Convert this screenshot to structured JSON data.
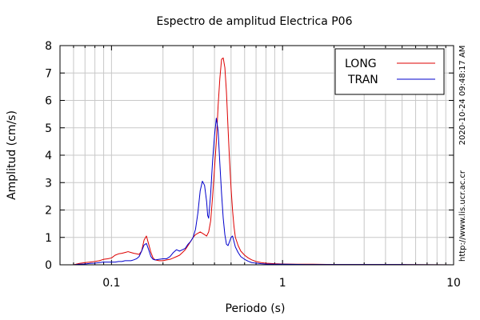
{
  "chart_data": {
    "type": "line",
    "title": "Espectro de amplitud Electrica P06",
    "xlabel": "Periodo (s)",
    "ylabel": "Amplitud (cm/s)",
    "x_scale": "log",
    "xlim": [
      0.05,
      10
    ],
    "ylim": [
      0,
      8
    ],
    "x_tick_labels": [
      {
        "value": 0.1,
        "label": "0.1"
      },
      {
        "value": 1,
        "label": "1"
      },
      {
        "value": 10,
        "label": "10"
      }
    ],
    "y_tick_labels": [
      "0",
      "1",
      "2",
      "3",
      "4",
      "5",
      "6",
      "7",
      "8"
    ],
    "grid": true,
    "legend_position": "top-right",
    "series": [
      {
        "name": "LONG",
        "color": "#dd0000",
        "points": [
          [
            0.06,
            0.0
          ],
          [
            0.065,
            0.05
          ],
          [
            0.07,
            0.08
          ],
          [
            0.075,
            0.1
          ],
          [
            0.08,
            0.12
          ],
          [
            0.085,
            0.15
          ],
          [
            0.09,
            0.2
          ],
          [
            0.095,
            0.22
          ],
          [
            0.1,
            0.25
          ],
          [
            0.105,
            0.35
          ],
          [
            0.11,
            0.4
          ],
          [
            0.115,
            0.42
          ],
          [
            0.12,
            0.45
          ],
          [
            0.125,
            0.48
          ],
          [
            0.13,
            0.45
          ],
          [
            0.135,
            0.42
          ],
          [
            0.14,
            0.4
          ],
          [
            0.145,
            0.38
          ],
          [
            0.15,
            0.5
          ],
          [
            0.155,
            0.9
          ],
          [
            0.16,
            1.05
          ],
          [
            0.165,
            0.75
          ],
          [
            0.17,
            0.45
          ],
          [
            0.175,
            0.25
          ],
          [
            0.18,
            0.18
          ],
          [
            0.19,
            0.15
          ],
          [
            0.2,
            0.15
          ],
          [
            0.21,
            0.18
          ],
          [
            0.22,
            0.2
          ],
          [
            0.23,
            0.25
          ],
          [
            0.24,
            0.3
          ],
          [
            0.25,
            0.35
          ],
          [
            0.26,
            0.45
          ],
          [
            0.27,
            0.55
          ],
          [
            0.28,
            0.7
          ],
          [
            0.29,
            0.85
          ],
          [
            0.3,
            1.0
          ],
          [
            0.31,
            1.1
          ],
          [
            0.32,
            1.15
          ],
          [
            0.33,
            1.2
          ],
          [
            0.34,
            1.15
          ],
          [
            0.35,
            1.1
          ],
          [
            0.36,
            1.05
          ],
          [
            0.37,
            1.2
          ],
          [
            0.38,
            1.6
          ],
          [
            0.39,
            2.5
          ],
          [
            0.4,
            3.5
          ],
          [
            0.41,
            4.5
          ],
          [
            0.42,
            5.8
          ],
          [
            0.43,
            6.8
          ],
          [
            0.44,
            7.5
          ],
          [
            0.45,
            7.55
          ],
          [
            0.46,
            7.2
          ],
          [
            0.47,
            6.3
          ],
          [
            0.48,
            5.0
          ],
          [
            0.49,
            3.8
          ],
          [
            0.5,
            2.8
          ],
          [
            0.51,
            2.0
          ],
          [
            0.52,
            1.4
          ],
          [
            0.53,
            1.0
          ],
          [
            0.55,
            0.7
          ],
          [
            0.57,
            0.5
          ],
          [
            0.6,
            0.35
          ],
          [
            0.63,
            0.25
          ],
          [
            0.66,
            0.18
          ],
          [
            0.7,
            0.12
          ],
          [
            0.75,
            0.08
          ],
          [
            0.8,
            0.06
          ],
          [
            0.9,
            0.04
          ],
          [
            1.0,
            0.03
          ],
          [
            1.2,
            0.02
          ],
          [
            1.5,
            0.02
          ],
          [
            2.0,
            0.01
          ],
          [
            3.0,
            0.01
          ],
          [
            5.0,
            0.01
          ],
          [
            10.0,
            0.0
          ]
        ]
      },
      {
        "name": "TRAN",
        "color": "#0000cc",
        "points": [
          [
            0.06,
            0.0
          ],
          [
            0.065,
            0.02
          ],
          [
            0.07,
            0.03
          ],
          [
            0.075,
            0.05
          ],
          [
            0.08,
            0.06
          ],
          [
            0.085,
            0.08
          ],
          [
            0.09,
            0.1
          ],
          [
            0.095,
            0.1
          ],
          [
            0.1,
            0.1
          ],
          [
            0.105,
            0.1
          ],
          [
            0.11,
            0.12
          ],
          [
            0.115,
            0.12
          ],
          [
            0.12,
            0.15
          ],
          [
            0.125,
            0.15
          ],
          [
            0.13,
            0.15
          ],
          [
            0.135,
            0.18
          ],
          [
            0.14,
            0.22
          ],
          [
            0.145,
            0.3
          ],
          [
            0.15,
            0.5
          ],
          [
            0.155,
            0.72
          ],
          [
            0.16,
            0.78
          ],
          [
            0.165,
            0.55
          ],
          [
            0.17,
            0.3
          ],
          [
            0.175,
            0.2
          ],
          [
            0.18,
            0.18
          ],
          [
            0.19,
            0.2
          ],
          [
            0.2,
            0.22
          ],
          [
            0.21,
            0.22
          ],
          [
            0.22,
            0.3
          ],
          [
            0.23,
            0.45
          ],
          [
            0.24,
            0.55
          ],
          [
            0.25,
            0.5
          ],
          [
            0.26,
            0.55
          ],
          [
            0.27,
            0.6
          ],
          [
            0.28,
            0.75
          ],
          [
            0.29,
            0.85
          ],
          [
            0.3,
            1.0
          ],
          [
            0.31,
            1.3
          ],
          [
            0.32,
            1.9
          ],
          [
            0.33,
            2.7
          ],
          [
            0.34,
            3.05
          ],
          [
            0.35,
            2.9
          ],
          [
            0.36,
            2.3
          ],
          [
            0.365,
            1.8
          ],
          [
            0.37,
            1.7
          ],
          [
            0.38,
            2.6
          ],
          [
            0.39,
            3.8
          ],
          [
            0.4,
            4.7
          ],
          [
            0.41,
            5.35
          ],
          [
            0.42,
            4.9
          ],
          [
            0.43,
            3.7
          ],
          [
            0.44,
            2.6
          ],
          [
            0.45,
            1.7
          ],
          [
            0.46,
            1.1
          ],
          [
            0.47,
            0.75
          ],
          [
            0.48,
            0.7
          ],
          [
            0.49,
            0.85
          ],
          [
            0.5,
            1.0
          ],
          [
            0.51,
            1.05
          ],
          [
            0.52,
            0.85
          ],
          [
            0.53,
            0.65
          ],
          [
            0.55,
            0.45
          ],
          [
            0.57,
            0.3
          ],
          [
            0.6,
            0.2
          ],
          [
            0.63,
            0.13
          ],
          [
            0.66,
            0.08
          ],
          [
            0.7,
            0.06
          ],
          [
            0.75,
            0.04
          ],
          [
            0.8,
            0.03
          ],
          [
            0.9,
            0.02
          ],
          [
            1.0,
            0.02
          ],
          [
            1.5,
            0.01
          ],
          [
            2.0,
            0.01
          ],
          [
            5.0,
            0.01
          ],
          [
            10.0,
            0.0
          ]
        ]
      }
    ]
  },
  "side_text": {
    "timestamp": "2020-10-24 09:48:17 AM",
    "url": "http://www.lis.ucr.ac.cr"
  }
}
